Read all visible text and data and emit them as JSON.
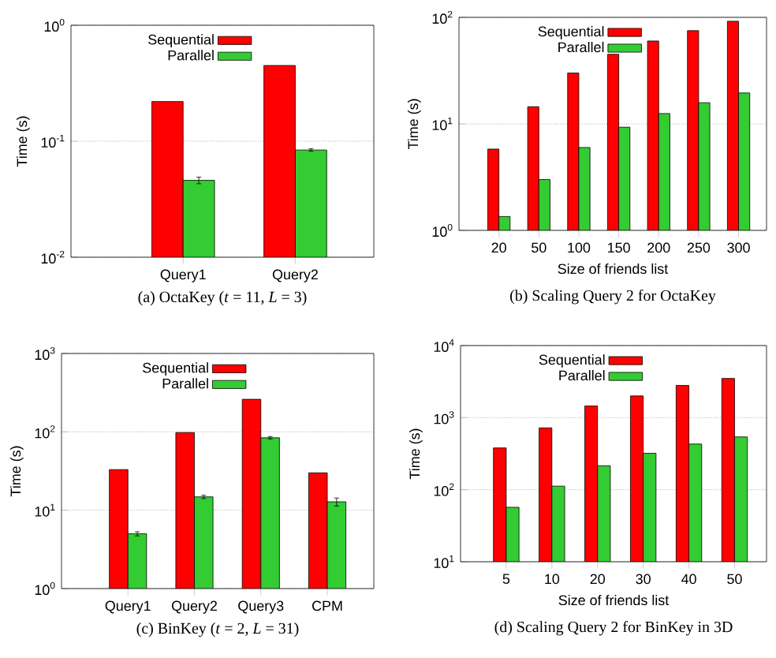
{
  "chart_data": [
    {
      "type": "bar",
      "title": "(a) OctaKey (*t* = 11, *L* = 3)",
      "ylabel": "Time (s)",
      "categories": [
        "Query1",
        "Query2"
      ],
      "log": true,
      "grid": "y",
      "legend": "top",
      "ylim": [
        0.01,
        1
      ],
      "yticks": [
        {
          "value": 0.01,
          "label": "10$^{-2}$"
        },
        {
          "value": 0.1,
          "label": "10$^{-1}$"
        },
        {
          "value": 1,
          "label": "10$^{0}$"
        }
      ],
      "series": [
        {
          "name": "Sequential",
          "color": "#ff0000",
          "values": [
            0.22,
            0.45
          ]
        },
        {
          "name": "Parallel",
          "color": "#33cc33",
          "values": [
            0.046,
            0.084
          ],
          "errors": [
            0.003,
            0.002
          ]
        }
      ]
    },
    {
      "type": "bar",
      "title": "(b) Scaling Query 2 for OctaKey",
      "xlabel": "Size of friends list",
      "ylabel": "Time (s)",
      "categories": [
        "20",
        "50",
        "100",
        "150",
        "200",
        "250",
        "300"
      ],
      "log": true,
      "grid": "y",
      "legend": "top",
      "ylim": [
        1,
        100
      ],
      "yticks": [
        {
          "value": 1,
          "label": "10$^{0}$"
        },
        {
          "value": 10,
          "label": "10$^{1}$"
        },
        {
          "value": 100,
          "label": "10$^{2}$"
        }
      ],
      "series": [
        {
          "name": "Sequential",
          "color": "#ff0000",
          "values": [
            5.8,
            14.5,
            30,
            45,
            60,
            75,
            92
          ]
        },
        {
          "name": "Parallel",
          "color": "#33cc33",
          "values": [
            1.35,
            3.0,
            6.0,
            9.3,
            12.5,
            15.8,
            19.5
          ]
        }
      ]
    },
    {
      "type": "bar",
      "title": "(c) BinKey (*t* = 2, *L* = 31)",
      "ylabel": "Time (s)",
      "categories": [
        "Query1",
        "Query2",
        "Query3",
        "CPM"
      ],
      "log": true,
      "grid": "y",
      "legend": "top",
      "ylim": [
        1,
        1000
      ],
      "yticks": [
        {
          "value": 1,
          "label": "10$^{0}$"
        },
        {
          "value": 10,
          "label": "10$^{1}$"
        },
        {
          "value": 100,
          "label": "10$^{2}$"
        },
        {
          "value": 1000,
          "label": "10$^{3}$"
        }
      ],
      "series": [
        {
          "name": "Sequential",
          "color": "#ff0000",
          "values": [
            33,
            98,
            260,
            30
          ]
        },
        {
          "name": "Parallel",
          "color": "#33cc33",
          "values": [
            5.0,
            14.8,
            84,
            12.8
          ],
          "errors": [
            0.3,
            0.7,
            3,
            1.5
          ]
        }
      ]
    },
    {
      "type": "bar",
      "title": "(d) Scaling Query 2 for BinKey in 3D",
      "xlabel": "Size of friends list",
      "ylabel": "Time (s)",
      "categories": [
        "5",
        "10",
        "20",
        "30",
        "40",
        "50"
      ],
      "log": true,
      "grid": "y",
      "legend": "top",
      "ylim": [
        10,
        10000
      ],
      "yticks": [
        {
          "value": 10,
          "label": "10$^{1}$"
        },
        {
          "value": 100,
          "label": "10$^{2}$"
        },
        {
          "value": 1000,
          "label": "10$^{3}$"
        },
        {
          "value": 10000,
          "label": "10$^{4}$"
        }
      ],
      "series": [
        {
          "name": "Sequential",
          "color": "#ff0000",
          "values": [
            380,
            720,
            1450,
            2000,
            2800,
            3500
          ]
        },
        {
          "name": "Parallel",
          "color": "#33cc33",
          "values": [
            57,
            112,
            215,
            320,
            430,
            540
          ]
        }
      ]
    }
  ]
}
